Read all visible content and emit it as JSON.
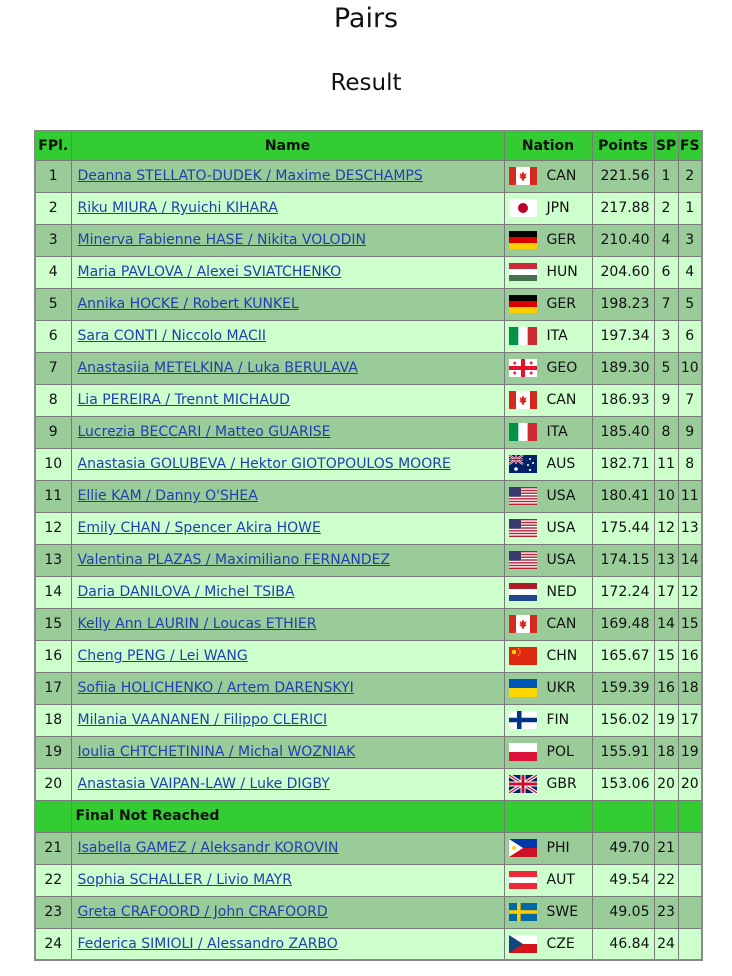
{
  "page": {
    "title": "Pairs",
    "subtitle": "Result"
  },
  "table": {
    "headers": {
      "fpl": "FPl.",
      "name": "Name",
      "nation": "Nation",
      "points": "Points",
      "sp": "SP",
      "fs": "FS"
    },
    "section_label": "Final Not Reached",
    "rows": [
      {
        "fpl": "1",
        "name": "Deanna STELLATO-DUDEK / Maxime DESCHAMPS",
        "flag": "CAN",
        "nation": "CAN",
        "points": "221.56",
        "sp": "1",
        "fs": "2"
      },
      {
        "fpl": "2",
        "name": "Riku MIURA / Ryuichi KIHARA",
        "flag": "JPN",
        "nation": "JPN",
        "points": "217.88",
        "sp": "2",
        "fs": "1"
      },
      {
        "fpl": "3",
        "name": "Minerva Fabienne HASE / Nikita VOLODIN",
        "flag": "GER",
        "nation": "GER",
        "points": "210.40",
        "sp": "4",
        "fs": "3"
      },
      {
        "fpl": "4",
        "name": "Maria PAVLOVA / Alexei SVIATCHENKO",
        "flag": "HUN",
        "nation": "HUN",
        "points": "204.60",
        "sp": "6",
        "fs": "4"
      },
      {
        "fpl": "5",
        "name": "Annika HOCKE / Robert KUNKEL",
        "flag": "GER",
        "nation": "GER",
        "points": "198.23",
        "sp": "7",
        "fs": "5"
      },
      {
        "fpl": "6",
        "name": "Sara CONTI / Niccolo MACII",
        "flag": "ITA",
        "nation": "ITA",
        "points": "197.34",
        "sp": "3",
        "fs": "6"
      },
      {
        "fpl": "7",
        "name": "Anastasiia METELKINA / Luka BERULAVA",
        "flag": "GEO",
        "nation": "GEO",
        "points": "189.30",
        "sp": "5",
        "fs": "10"
      },
      {
        "fpl": "8",
        "name": "Lia PEREIRA / Trennt MICHAUD",
        "flag": "CAN",
        "nation": "CAN",
        "points": "186.93",
        "sp": "9",
        "fs": "7"
      },
      {
        "fpl": "9",
        "name": "Lucrezia BECCARI / Matteo GUARISE",
        "flag": "ITA",
        "nation": "ITA",
        "points": "185.40",
        "sp": "8",
        "fs": "9"
      },
      {
        "fpl": "10",
        "name": "Anastasia GOLUBEVA / Hektor GIOTOPOULOS MOORE",
        "flag": "AUS",
        "nation": "AUS",
        "points": "182.71",
        "sp": "11",
        "fs": "8"
      },
      {
        "fpl": "11",
        "name": "Ellie KAM / Danny O'SHEA",
        "flag": "USA",
        "nation": "USA",
        "points": "180.41",
        "sp": "10",
        "fs": "11"
      },
      {
        "fpl": "12",
        "name": "Emily CHAN / Spencer Akira HOWE",
        "flag": "USA",
        "nation": "USA",
        "points": "175.44",
        "sp": "12",
        "fs": "13"
      },
      {
        "fpl": "13",
        "name": "Valentina PLAZAS / Maximiliano FERNANDEZ",
        "flag": "USA",
        "nation": "USA",
        "points": "174.15",
        "sp": "13",
        "fs": "14"
      },
      {
        "fpl": "14",
        "name": "Daria DANILOVA / Michel TSIBA",
        "flag": "NED",
        "nation": "NED",
        "points": "172.24",
        "sp": "17",
        "fs": "12"
      },
      {
        "fpl": "15",
        "name": "Kelly Ann LAURIN / Loucas ETHIER",
        "flag": "CAN",
        "nation": "CAN",
        "points": "169.48",
        "sp": "14",
        "fs": "15"
      },
      {
        "fpl": "16",
        "name": "Cheng PENG / Lei WANG",
        "flag": "CHN",
        "nation": "CHN",
        "points": "165.67",
        "sp": "15",
        "fs": "16"
      },
      {
        "fpl": "17",
        "name": "Sofiia HOLICHENKO / Artem DARENSKYI",
        "flag": "UKR",
        "nation": "UKR",
        "points": "159.39",
        "sp": "16",
        "fs": "18"
      },
      {
        "fpl": "18",
        "name": "Milania VAANANEN / Filippo CLERICI",
        "flag": "FIN",
        "nation": "FIN",
        "points": "156.02",
        "sp": "19",
        "fs": "17"
      },
      {
        "fpl": "19",
        "name": "Ioulia CHTCHETININA / Michal WOZNIAK",
        "flag": "POL",
        "nation": "POL",
        "points": "155.91",
        "sp": "18",
        "fs": "19"
      },
      {
        "fpl": "20",
        "name": "Anastasia VAIPAN-LAW / Luke DIGBY",
        "flag": "GBR",
        "nation": "GBR",
        "points": "153.06",
        "sp": "20",
        "fs": "20"
      }
    ],
    "rows_not_reached": [
      {
        "fpl": "21",
        "name": "Isabella GAMEZ / Aleksandr KOROVIN",
        "flag": "PHI",
        "nation": "PHI",
        "points": "49.70",
        "sp": "21",
        "fs": ""
      },
      {
        "fpl": "22",
        "name": "Sophia SCHALLER / Livio MAYR",
        "flag": "AUT",
        "nation": "AUT",
        "points": "49.54",
        "sp": "22",
        "fs": ""
      },
      {
        "fpl": "23",
        "name": "Greta CRAFOORD / John CRAFOORD",
        "flag": "SWE",
        "nation": "SWE",
        "points": "49.05",
        "sp": "23",
        "fs": ""
      },
      {
        "fpl": "24",
        "name": "Federica SIMIOLI / Alessandro ZARBO",
        "flag": "CZE",
        "nation": "CZE",
        "points": "46.84",
        "sp": "24",
        "fs": ""
      }
    ]
  },
  "colors": {
    "header_green": "#33cc33",
    "row_dark": "#99cc99",
    "row_light": "#ccffcc",
    "link_blue": "#1f3fae"
  }
}
